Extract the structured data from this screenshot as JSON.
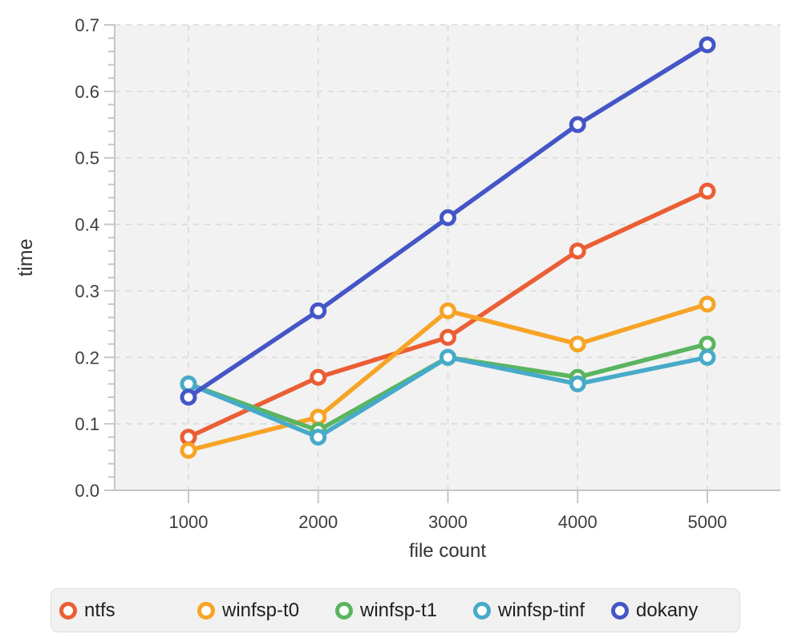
{
  "chart_data": {
    "type": "line",
    "title": "",
    "xlabel": "file count",
    "ylabel": "time",
    "x": [
      1000,
      2000,
      3000,
      4000,
      5000
    ],
    "x_tick_labels": [
      "1000",
      "2000",
      "3000",
      "4000",
      "5000"
    ],
    "ylim": [
      0.0,
      0.7
    ],
    "y_major_step": 0.1,
    "y_minor_step": 0.02,
    "y_tick_labels": [
      "0.0",
      "0.1",
      "0.2",
      "0.3",
      "0.4",
      "0.5",
      "0.6",
      "0.7"
    ],
    "grid": "dashed-major-both-axes",
    "legend_position": "bottom",
    "series": [
      {
        "name": "ntfs",
        "color": "#eb5e34",
        "values": [
          0.08,
          0.17,
          0.23,
          0.36,
          0.45
        ]
      },
      {
        "name": "winfsp-t0",
        "color": "#f7a426",
        "values": [
          0.06,
          0.11,
          0.27,
          0.22,
          0.28
        ]
      },
      {
        "name": "winfsp-t1",
        "color": "#5ab55e",
        "values": [
          0.16,
          0.09,
          0.2,
          0.17,
          0.22
        ]
      },
      {
        "name": "winfsp-tinf",
        "color": "#47aac9",
        "values": [
          0.16,
          0.08,
          0.2,
          0.16,
          0.2
        ]
      },
      {
        "name": "dokany",
        "color": "#4456c7",
        "values": [
          0.14,
          0.27,
          0.41,
          0.55,
          0.67
        ]
      }
    ],
    "style": {
      "plot_bg": "#f2f2f2",
      "grid_color": "#d9d9d9",
      "axis_color": "#c6c6c6",
      "tick_label_color": "#3e3e3e",
      "axis_label_color": "#333333",
      "marker_fill": "#ffffff",
      "legend_bg": "#f1f1f1",
      "legend_border": "#dcdcdc",
      "legend_text": "#1f1f1f"
    }
  }
}
